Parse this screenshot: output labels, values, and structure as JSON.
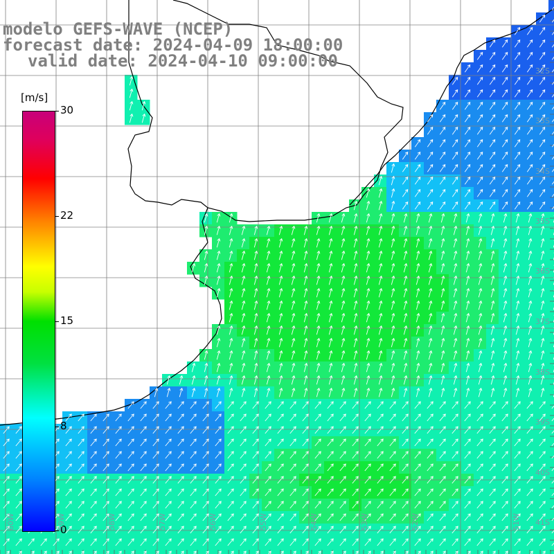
{
  "header": {
    "line1": "modelo GEFS-WAVE (NCEP)",
    "line2": "forecast date: 2024-04-09 18:00:00",
    "line3": "valid date: 2024-04-10 09:00:00"
  },
  "colorbar": {
    "unit": "[m/s]",
    "ticks": [
      "30",
      "22",
      "15",
      "8",
      "0"
    ],
    "colors": [
      "#0000ff",
      "#0080ff",
      "#00ffff",
      "#00e040",
      "#00e000",
      "#ffff00",
      "#ff8000",
      "#ff0000",
      "#c8007a"
    ]
  },
  "map": {
    "lat_labels": [
      "32S",
      "33S",
      "34S",
      "35S",
      "36S",
      "37S",
      "38S",
      "39S",
      "40S",
      "41S"
    ],
    "lon_labels": [
      "60W",
      "59W",
      "58W",
      "57W",
      "56W",
      "55W",
      "54W",
      "53W",
      "52W",
      "51W"
    ],
    "colors": {
      "land": "#ffffff",
      "grid": "#808080",
      "coast": "#000000",
      "arrow": "#ffffff"
    }
  }
}
